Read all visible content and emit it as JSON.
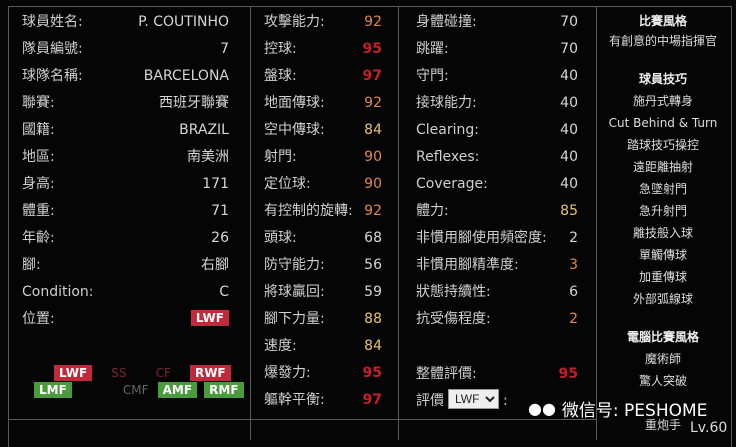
{
  "info": [
    {
      "label": "球員姓名:",
      "value": "P. COUTINHO"
    },
    {
      "label": "隊員編號:",
      "value": "7"
    },
    {
      "label": "球隊名稱:",
      "value": "BARCELONA"
    },
    {
      "label": "聯賽:",
      "value": "西班牙聯賽"
    },
    {
      "label": "國籍:",
      "value": "BRAZIL"
    },
    {
      "label": "地區:",
      "value": "南美洲"
    },
    {
      "label": "身高:",
      "value": "171"
    },
    {
      "label": "體重:",
      "value": "71"
    },
    {
      "label": "年齡:",
      "value": "26"
    },
    {
      "label": "腳:",
      "value": "右腳"
    },
    {
      "label": "Condition:",
      "value": "C"
    },
    {
      "label": "位置:",
      "value": "LWF"
    }
  ],
  "positions": {
    "row1": [
      "LWF",
      "SS",
      "CF",
      "RWF"
    ],
    "row2": [
      "LMF",
      "CMF",
      "AMF",
      "RMF"
    ]
  },
  "stats1": [
    {
      "label": "攻擊能力:",
      "value": "92",
      "tier": "o"
    },
    {
      "label": "控球:",
      "value": "95",
      "tier": "r"
    },
    {
      "label": "盤球:",
      "value": "97",
      "tier": "r"
    },
    {
      "label": "地面傳球:",
      "value": "92",
      "tier": "o"
    },
    {
      "label": "空中傳球:",
      "value": "84",
      "tier": "y"
    },
    {
      "label": "射門:",
      "value": "90",
      "tier": "o"
    },
    {
      "label": "定位球:",
      "value": "90",
      "tier": "o"
    },
    {
      "label": "有控制的旋轉:",
      "value": "92",
      "tier": "o"
    },
    {
      "label": "頭球:",
      "value": "68",
      "tier": ""
    },
    {
      "label": "防守能力:",
      "value": "56",
      "tier": ""
    },
    {
      "label": "將球贏回:",
      "value": "59",
      "tier": ""
    },
    {
      "label": "腳下力量:",
      "value": "88",
      "tier": "y"
    },
    {
      "label": "速度:",
      "value": "84",
      "tier": "y"
    },
    {
      "label": "爆發力:",
      "value": "95",
      "tier": "r"
    },
    {
      "label": "軀幹平衡:",
      "value": "97",
      "tier": "r"
    }
  ],
  "stats2": [
    {
      "label": "身體碰撞:",
      "value": "70",
      "tier": ""
    },
    {
      "label": "跳躍:",
      "value": "70",
      "tier": ""
    },
    {
      "label": "守門:",
      "value": "40",
      "tier": ""
    },
    {
      "label": "接球能力:",
      "value": "40",
      "tier": ""
    },
    {
      "label": "Clearing:",
      "value": "40",
      "tier": ""
    },
    {
      "label": "Reflexes:",
      "value": "40",
      "tier": ""
    },
    {
      "label": "Coverage:",
      "value": "40",
      "tier": ""
    },
    {
      "label": "體力:",
      "value": "85",
      "tier": "y"
    },
    {
      "label": "非慣用腳使用頻密度:",
      "value": "2",
      "tier": ""
    },
    {
      "label": "非慣用腳精準度:",
      "value": "3",
      "tier": "o"
    },
    {
      "label": "狀態持續性:",
      "value": "6",
      "tier": ""
    },
    {
      "label": "抗受傷程度:",
      "value": "2",
      "tier": "o"
    }
  ],
  "overall": {
    "label": "整體評價:",
    "value": "95"
  },
  "rating": {
    "label": "評價",
    "selected": "LWF",
    "suffix": ":"
  },
  "sidebar": {
    "style_title": "比賽風格",
    "style": "有創意的中場指揮官",
    "skills_title": "球員技巧",
    "skills": [
      "施丹式轉身",
      "Cut Behind & Turn",
      "踏球技巧操控",
      "遠距離抽射",
      "急墜射門",
      "急升射門",
      "離技般入球",
      "單觸傳球",
      "加重傳球",
      "外部弧線球"
    ],
    "ai_title": "電腦比賽風格",
    "ai": [
      "魔術師",
      "驚人突破",
      "重炮手"
    ]
  },
  "watermark": "微信号: PESHOME",
  "level": "Lv.60",
  "colors": {
    "orange": "#e0874d",
    "red": "#c81e28",
    "yellow": "#e8c26a",
    "badge_red": "#c12a3b",
    "badge_green": "#4a9b3c"
  }
}
